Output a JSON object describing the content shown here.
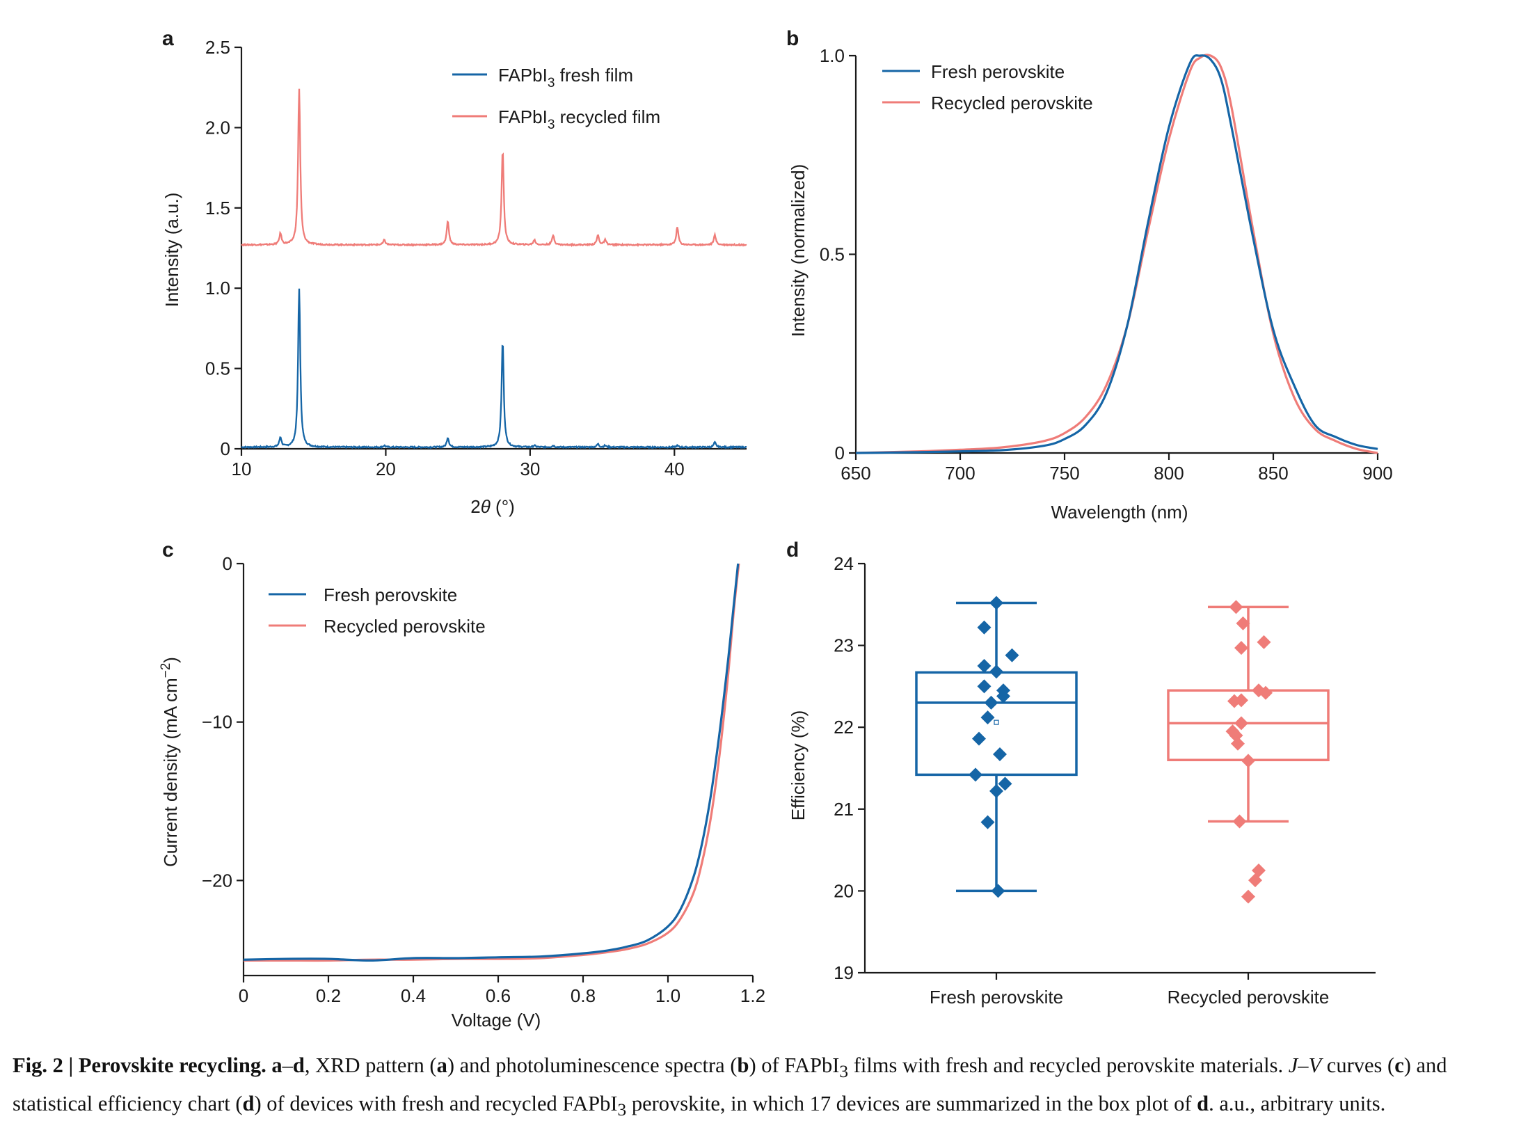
{
  "colors": {
    "fresh": "#1565a6",
    "recycled": "#ef7c78",
    "axis": "#1a1a1a"
  },
  "chart_data": [
    {
      "panel": "a",
      "type": "line",
      "xlabel": "2θ (°)",
      "ylabel": "Intensity (a.u.)",
      "xlim": [
        10,
        45
      ],
      "ylim": [
        0,
        2.5
      ],
      "xticks": [
        "10",
        "20",
        "30",
        "40"
      ],
      "yticks": [
        "0",
        "0.5",
        "1.0",
        "1.5",
        "2.0",
        "2.5"
      ],
      "legend": "top-right",
      "series": [
        {
          "name": "FAPbI3 fresh film",
          "color_key": "fresh",
          "baseline": 0.01,
          "peaks": [
            [
              12.7,
              0.06
            ],
            [
              14.0,
              0.99
            ],
            [
              19.9,
              0.01
            ],
            [
              24.3,
              0.06
            ],
            [
              28.1,
              0.66
            ],
            [
              30.3,
              0.01
            ],
            [
              31.6,
              0.01
            ],
            [
              34.7,
              0.02
            ],
            [
              35.2,
              0.01
            ],
            [
              40.2,
              0.01
            ],
            [
              42.8,
              0.03
            ]
          ]
        },
        {
          "name": "FAPbI3 recycled film",
          "color_key": "recycled",
          "baseline": 1.27,
          "peaks": [
            [
              12.7,
              0.07
            ],
            [
              14.0,
              0.97
            ],
            [
              19.9,
              0.03
            ],
            [
              24.3,
              0.15
            ],
            [
              28.1,
              0.59
            ],
            [
              30.3,
              0.03
            ],
            [
              31.6,
              0.06
            ],
            [
              34.7,
              0.06
            ],
            [
              35.2,
              0.03
            ],
            [
              40.2,
              0.11
            ],
            [
              42.8,
              0.06
            ]
          ]
        }
      ]
    },
    {
      "panel": "b",
      "type": "line",
      "xlabel": "Wavelength (nm)",
      "ylabel": "Intensity (normalized)",
      "xlim": [
        650,
        900
      ],
      "ylim": [
        0,
        1.0
      ],
      "xticks": [
        "650",
        "700",
        "750",
        "800",
        "850",
        "900"
      ],
      "yticks": [
        "0",
        "0.5",
        "1.0"
      ],
      "legend": "top-left",
      "series": [
        {
          "name": "Fresh perovskite",
          "color_key": "fresh",
          "x": [
            650,
            680,
            700,
            720,
            740,
            750,
            760,
            770,
            780,
            790,
            800,
            810,
            815,
            820,
            825,
            830,
            840,
            850,
            860,
            870,
            880,
            890,
            900
          ],
          "y": [
            0.0,
            0.002,
            0.004,
            0.007,
            0.018,
            0.035,
            0.07,
            0.15,
            0.32,
            0.58,
            0.82,
            0.98,
            1.0,
            0.99,
            0.94,
            0.82,
            0.55,
            0.31,
            0.17,
            0.07,
            0.04,
            0.02,
            0.01
          ]
        },
        {
          "name": "Recycled perovskite",
          "color_key": "recycled",
          "x": [
            650,
            680,
            700,
            720,
            740,
            750,
            760,
            770,
            780,
            790,
            800,
            810,
            815,
            820,
            825,
            830,
            840,
            850,
            860,
            870,
            880,
            890,
            900
          ],
          "y": [
            0.0,
            0.004,
            0.008,
            0.014,
            0.03,
            0.05,
            0.09,
            0.17,
            0.32,
            0.56,
            0.79,
            0.96,
            0.995,
            1.0,
            0.97,
            0.87,
            0.57,
            0.3,
            0.14,
            0.06,
            0.03,
            0.01,
            0.0
          ]
        }
      ]
    },
    {
      "panel": "c",
      "type": "line",
      "xlabel": "Voltage (V)",
      "ylabel": "Current density (mA cm−2)",
      "xlim": [
        0,
        1.2
      ],
      "ylim": [
        -26,
        0
      ],
      "xticks": [
        "0",
        "0.2",
        "0.4",
        "0.6",
        "0.8",
        "1.0",
        "1.2"
      ],
      "yticks": [
        "0",
        "−10",
        "−20"
      ],
      "legend": "top-left",
      "series": [
        {
          "name": "Fresh perovskite",
          "color_key": "fresh",
          "x": [
            0,
            0.1,
            0.2,
            0.3,
            0.4,
            0.5,
            0.6,
            0.7,
            0.8,
            0.85,
            0.9,
            0.95,
            1.0,
            1.03,
            1.06,
            1.08,
            1.1,
            1.12,
            1.14,
            1.155,
            1.165
          ],
          "y": [
            -25.0,
            -24.95,
            -24.95,
            -25.05,
            -24.9,
            -24.9,
            -24.85,
            -24.8,
            -24.6,
            -24.45,
            -24.2,
            -23.8,
            -22.9,
            -21.8,
            -19.8,
            -17.7,
            -14.8,
            -11.0,
            -6.5,
            -2.6,
            0
          ]
        },
        {
          "name": "Recycled perovskite",
          "color_key": "recycled",
          "x": [
            0,
            0.1,
            0.2,
            0.3,
            0.4,
            0.5,
            0.6,
            0.7,
            0.8,
            0.85,
            0.9,
            0.95,
            1.0,
            1.03,
            1.06,
            1.08,
            1.1,
            1.12,
            1.14,
            1.155,
            1.167
          ],
          "y": [
            -25.05,
            -25.05,
            -25.05,
            -25.0,
            -25.0,
            -24.95,
            -24.95,
            -24.9,
            -24.7,
            -24.55,
            -24.35,
            -24.0,
            -23.3,
            -22.4,
            -20.8,
            -18.9,
            -16.2,
            -12.4,
            -7.5,
            -3.0,
            0
          ]
        }
      ]
    },
    {
      "panel": "d",
      "type": "box",
      "ylabel": "Efficiency (%)",
      "ylim": [
        19,
        24
      ],
      "yticks": [
        "19",
        "20",
        "21",
        "22",
        "23",
        "24"
      ],
      "categories": [
        "Fresh perovskite",
        "Recycled perovskite"
      ],
      "boxes": [
        {
          "color_key": "fresh",
          "whisker_low": 20.0,
          "q1": 21.42,
          "median": 22.3,
          "q3": 22.67,
          "whisker_high": 23.52,
          "mean": 22.06,
          "points": [
            23.52,
            23.22,
            22.88,
            22.75,
            22.68,
            22.5,
            22.45,
            22.38,
            22.3,
            22.12,
            21.86,
            21.67,
            21.42,
            21.31,
            21.22,
            20.84,
            20.0
          ],
          "jitter": [
            0.0,
            -0.07,
            0.09,
            -0.07,
            0.0,
            -0.07,
            0.04,
            0.04,
            -0.03,
            -0.05,
            -0.1,
            0.02,
            -0.12,
            0.05,
            0.0,
            -0.05,
            0.01
          ]
        },
        {
          "color_key": "recycled",
          "whisker_low": 20.85,
          "q1": 21.6,
          "median": 22.05,
          "q3": 22.45,
          "whisker_high": 23.47,
          "points": [
            23.47,
            23.27,
            23.04,
            22.97,
            22.45,
            22.42,
            22.33,
            22.32,
            22.05,
            21.95,
            21.9,
            21.8,
            21.59,
            20.85,
            20.25,
            20.13,
            19.93
          ],
          "jitter": [
            -0.07,
            -0.03,
            0.09,
            -0.04,
            0.06,
            0.1,
            -0.04,
            -0.08,
            -0.04,
            -0.09,
            -0.07,
            -0.06,
            0.0,
            -0.05,
            0.06,
            0.04,
            0.0
          ]
        }
      ]
    }
  ],
  "panel_letters": {
    "a": "a",
    "b": "b",
    "c": "c",
    "d": "d"
  },
  "caption": {
    "fig_label": "Fig. 2 | Perovskite recycling.",
    "range_start": "a",
    "range_sep": "–",
    "range_end": "d",
    "t1": ", XRD pattern (",
    "a": "a",
    "t2": ") and photoluminescence spectra (",
    "b": "b",
    "t3": ") of FAPbI",
    "sub3a": "3",
    "t4": " films with fresh and recycled perovskite materials. ",
    "jv": "J–V",
    "t5": " curves (",
    "c": "c",
    "t6": ") and statistical efficiency chart (",
    "d": "d",
    "t7": ") of devices with fresh and recycled FAPbI",
    "sub3b": "3",
    "t8": " perovskite, in which 17 devices are summarized in the box plot of ",
    "d2": "d",
    "t9": ". a.u., arbitrary units."
  }
}
